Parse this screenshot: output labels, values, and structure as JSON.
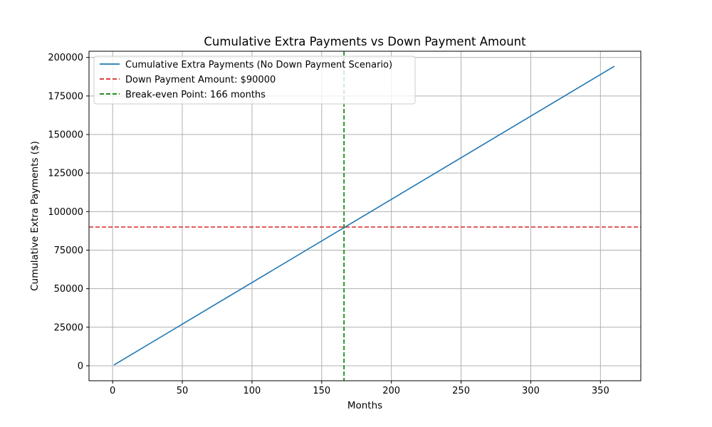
{
  "chart_data": {
    "type": "line",
    "title": "Cumulative Extra Payments vs Down Payment Amount",
    "xlabel": "Months",
    "ylabel": "Cumulative Extra Payments ($)",
    "xlim": [
      -16.95,
      378.95
    ],
    "ylim": [
      -9715,
      204015
    ],
    "xticks": [
      0,
      50,
      100,
      150,
      200,
      250,
      300,
      350
    ],
    "yticks": [
      0,
      25000,
      50000,
      75000,
      100000,
      125000,
      150000,
      175000,
      200000
    ],
    "grid": true,
    "legend_position": "top-left",
    "series": [
      {
        "name": "Cumulative Extra Payments (No Down Payment Scenario)",
        "kind": "line",
        "style": "solid",
        "color": "#1f77b4",
        "x": [
          1,
          360
        ],
        "y": [
          540,
          194300
        ]
      }
    ],
    "reference_lines": [
      {
        "name": "Down Payment Amount: $90000",
        "orientation": "horizontal",
        "value": 90000,
        "style": "dashed",
        "color": "#d62728"
      },
      {
        "name": "Break-even Point: 166 months",
        "orientation": "vertical",
        "value": 166,
        "style": "dashed",
        "color": "#008000"
      }
    ]
  }
}
